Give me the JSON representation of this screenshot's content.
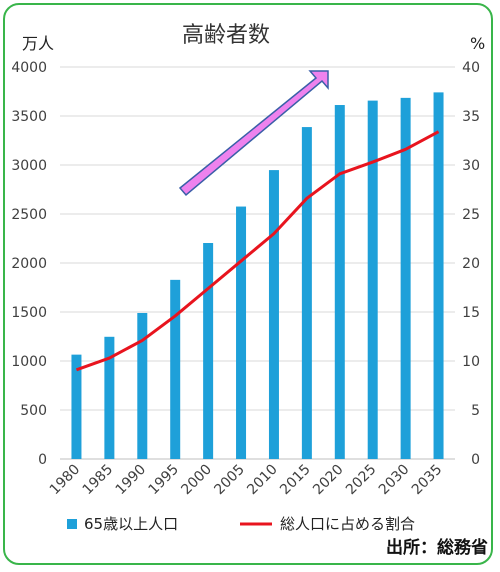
{
  "chart_data": {
    "type": "bar+line",
    "title": "高齢者数",
    "y_left_unit": "万人",
    "y_right_unit": "%",
    "categories": [
      "1980",
      "1985",
      "1990",
      "1995",
      "2000",
      "2005",
      "2010",
      "2015",
      "2020",
      "2025",
      "2030",
      "2035"
    ],
    "y_left_range": [
      0,
      4000
    ],
    "y_left_ticks": [
      "0",
      "500",
      "1000",
      "1500",
      "2000",
      "2500",
      "3000",
      "3500",
      "4000"
    ],
    "y_right_range": [
      0,
      40
    ],
    "y_right_ticks": [
      "0",
      "5",
      "10",
      "15",
      "20",
      "25",
      "30",
      "35",
      "40"
    ],
    "grid": true,
    "series": [
      {
        "name": "65歳以上人口",
        "type": "bar",
        "axis": "left",
        "color": "#1ea0d9",
        "values": [
          1065,
          1247,
          1490,
          1828,
          2204,
          2576,
          2948,
          3387,
          3612,
          3657,
          3685,
          3741
        ]
      },
      {
        "name": "総人口に占める割合",
        "type": "line",
        "axis": "right",
        "color": "#e8141e",
        "values": [
          9.1,
          10.3,
          12.1,
          14.6,
          17.4,
          20.2,
          23.0,
          26.6,
          29.1,
          30.3,
          31.6,
          33.4
        ]
      }
    ],
    "legend_position": "bottom",
    "annotation": {
      "type": "arrow",
      "color": "#ee82ee",
      "meaning": "increasing trend"
    },
    "source": "出所：総務省"
  }
}
